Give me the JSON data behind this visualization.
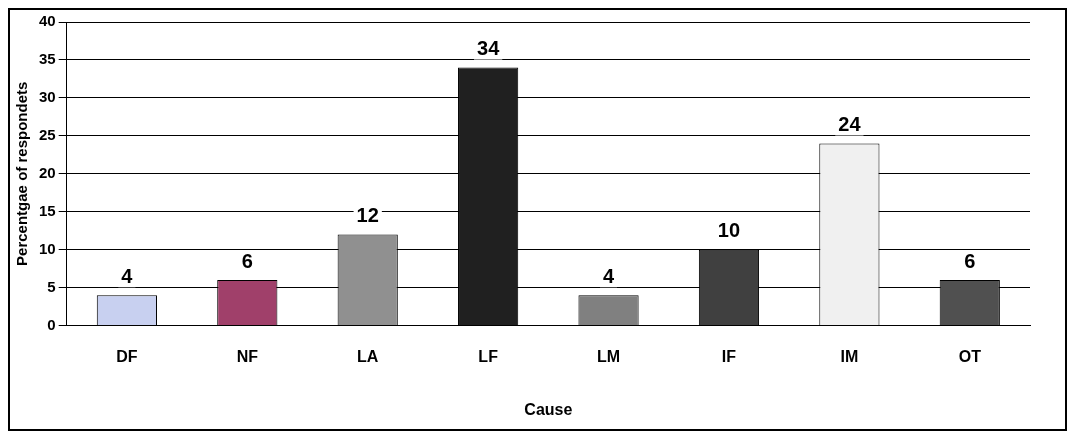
{
  "chart_data": {
    "type": "bar",
    "xlabel": "Cause",
    "ylabel": "Percentgae of respondets",
    "categories": [
      "DF",
      "NF",
      "LA",
      "LF",
      "LM",
      "IF",
      "IM",
      "OT"
    ],
    "values": [
      4,
      6,
      12,
      34,
      4,
      10,
      24,
      6
    ],
    "colors": [
      "#c8d0f0",
      "#a0406a",
      "#909090",
      "#202020",
      "#808080",
      "#404040",
      "#f0f0f0",
      "#505050"
    ],
    "ylim": [
      0,
      40
    ],
    "yticks": [
      0,
      5,
      10,
      15,
      20,
      25,
      30,
      35,
      40
    ],
    "grid": "y",
    "data_labels": true,
    "legend": false
  }
}
